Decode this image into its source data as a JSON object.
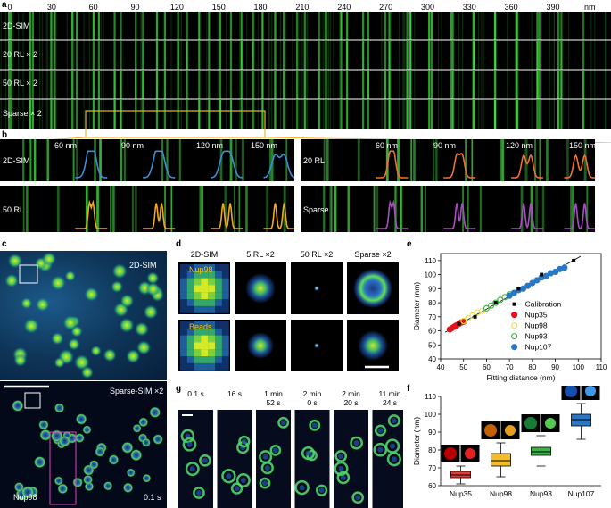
{
  "panels": {
    "a": {
      "label": "a",
      "axis_ticks": [
        "0",
        "30",
        "60",
        "90",
        "120",
        "150",
        "180",
        "210",
        "240",
        "270",
        "300",
        "330",
        "360",
        "390"
      ],
      "axis_unit": "nm",
      "rows": [
        "2D-SIM",
        "20 RL × 2",
        "50 RL × 2",
        "Sparse × 2"
      ]
    },
    "b": {
      "label": "b",
      "sub": [
        "2D-SIM",
        "20 RL",
        "50 RL",
        "Sparse"
      ],
      "spacing": [
        "60 nm",
        "90 nm",
        "120 nm",
        "150 nm"
      ],
      "colors": {
        "2D-SIM": "#3a8fd9",
        "20 RL": "#f07030",
        "50 RL": "#f2a81d",
        "Sparse": "#a64fc0"
      }
    },
    "c": {
      "label": "c",
      "top": "2D-SIM",
      "bottom": "Sparse-SIM ×2",
      "protein": "Nup98",
      "time": "0.1 s"
    },
    "d": {
      "label": "d",
      "columns": [
        "2D-SIM",
        "5 RL ×2",
        "50 RL ×2",
        "Sparse ×2"
      ],
      "rows": [
        "Nup98",
        "Beads"
      ]
    },
    "e": {
      "label": "e",
      "chart_data": {
        "type": "scatter",
        "xlabel": "Fitting distance (nm)",
        "ylabel": "Diameter (nm)",
        "xlim": [
          40,
          110
        ],
        "ylim": [
          40,
          115
        ],
        "x_ticks": [
          40,
          50,
          60,
          70,
          80,
          90,
          100,
          110
        ],
        "y_ticks": [
          40,
          50,
          60,
          70,
          80,
          90,
          100,
          110
        ],
        "legend_position": "bottom-right",
        "series": [
          {
            "name": "Calibration",
            "color": "#000000",
            "marker": "square",
            "x": [
              48,
              55,
              64,
              74,
              84,
              98
            ],
            "y": [
              65,
              70,
              80,
              90,
              100,
              110
            ]
          },
          {
            "name": "Nup35",
            "color": "#e8121c",
            "marker": "circle",
            "x": [
              44,
              45,
              46,
              46.5,
              47,
              48,
              49,
              50
            ],
            "y": [
              61,
              62,
              63,
              63.5,
              64,
              65,
              66,
              66.5
            ]
          },
          {
            "name": "Nup98",
            "color": "#ece040",
            "marker": "open-circle",
            "x": [
              50,
              52,
              54,
              56,
              58,
              60
            ],
            "y": [
              67,
              69,
              71,
              73,
              74,
              76
            ]
          },
          {
            "name": "Nup93",
            "color": "#3cb33c",
            "marker": "open-circle",
            "x": [
              60,
              62,
              64,
              66,
              68,
              70
            ],
            "y": [
              76,
              78,
              80,
              82,
              84,
              86
            ]
          },
          {
            "name": "Nup107",
            "color": "#2a78c4",
            "marker": "circle",
            "x": [
              70,
              72,
              74,
              76,
              78,
              80,
              82,
              84,
              86,
              88,
              90,
              92,
              94
            ],
            "y": [
              85,
              87,
              89,
              90,
              92,
              94,
              96,
              98,
              99,
              101,
              102,
              104,
              105
            ]
          }
        ]
      }
    },
    "f": {
      "label": "f",
      "chart_data": {
        "type": "box",
        "ylabel": "Diameter (nm)",
        "ylim": [
          60,
          110
        ],
        "y_ticks": [
          60,
          70,
          80,
          90,
          100,
          110
        ],
        "categories": [
          "Nup35",
          "Nup98",
          "Nup93",
          "Nup107"
        ],
        "series": [
          {
            "name": "Nup35",
            "color": "#e23b3b",
            "min": 61,
            "q1": 64.5,
            "median": 66,
            "q3": 68,
            "max": 71
          },
          {
            "name": "Nup98",
            "color": "#f2bd2c",
            "min": 65,
            "q1": 71,
            "median": 74,
            "q3": 78,
            "max": 84
          },
          {
            "name": "Nup93",
            "color": "#3db34a",
            "min": 71,
            "q1": 77,
            "median": 79,
            "q3": 81.5,
            "max": 88
          },
          {
            "name": "Nup107",
            "color": "#2c77c4",
            "min": 86,
            "q1": 93.5,
            "median": 97,
            "q3": 100,
            "max": 106
          }
        ]
      }
    },
    "g": {
      "label": "g",
      "times": [
        "0.1 s",
        "16 s",
        "1 min\n52 s",
        "2 min\n0 s",
        "2 min\n20 s",
        "11 min\n24 s"
      ]
    }
  }
}
